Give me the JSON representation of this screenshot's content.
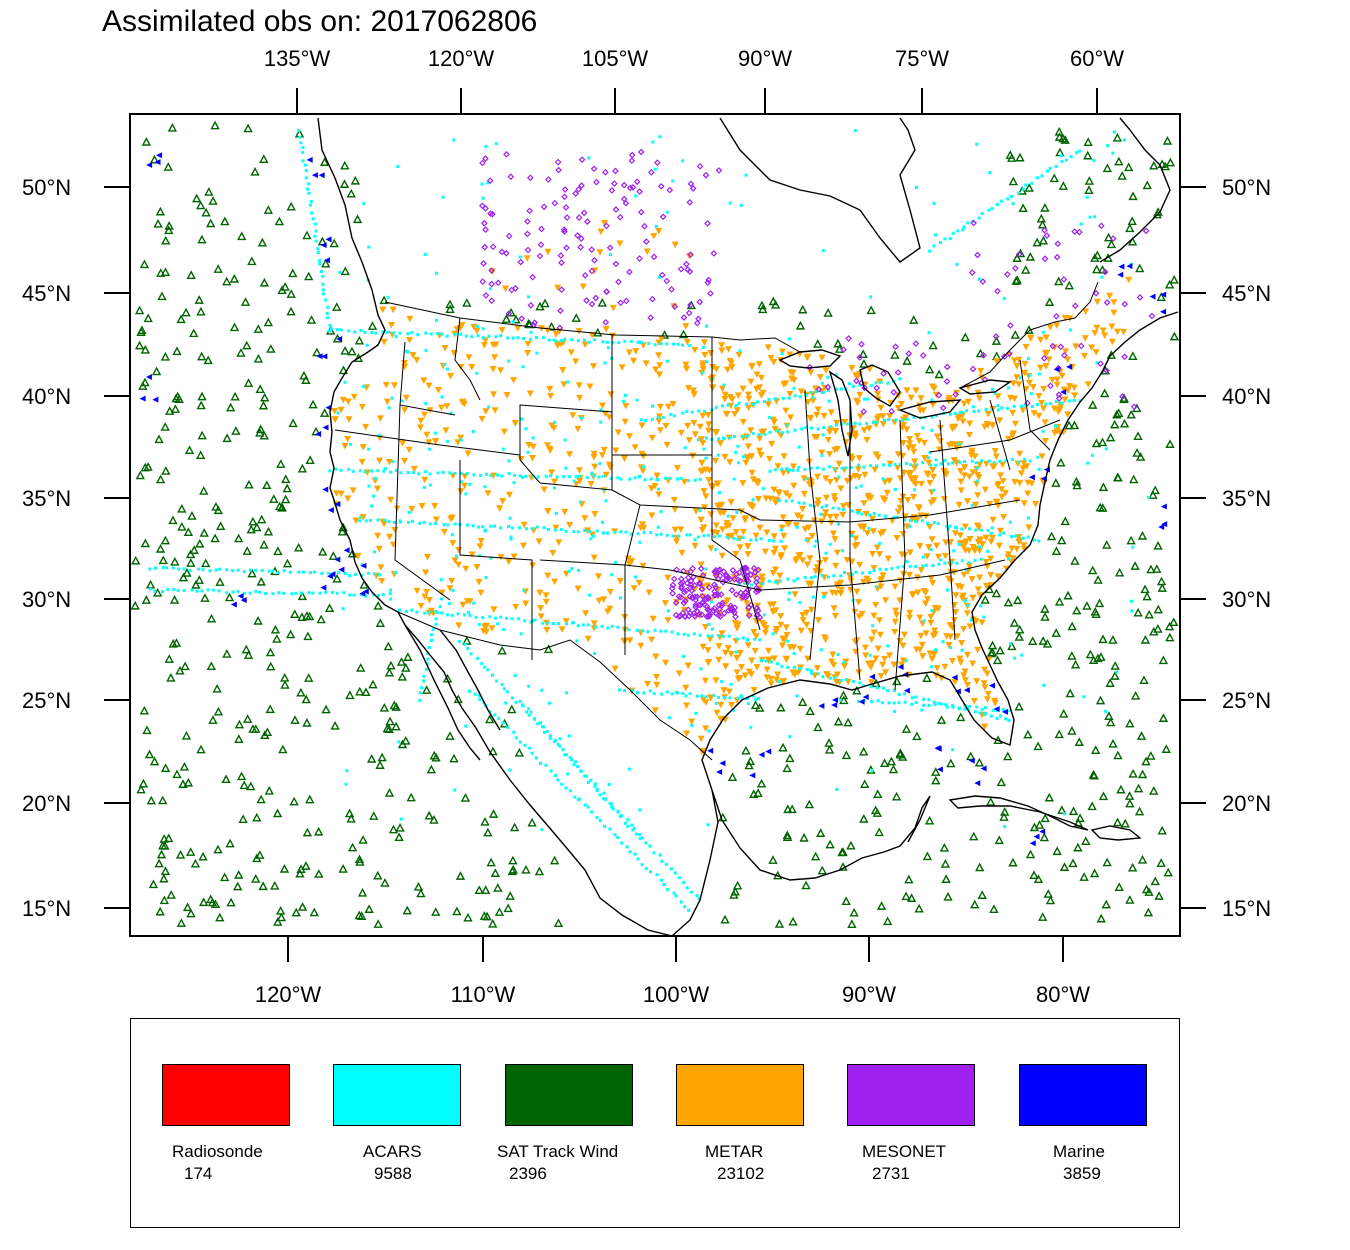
{
  "title": "Assimilated obs on: 2017062806",
  "axes": {
    "top_lon_labels": [
      "135°W",
      "120°W",
      "105°W",
      "90°W",
      "75°W",
      "60°W"
    ],
    "bottom_lon_labels": [
      "120°W",
      "110°W",
      "100°W",
      "90°W",
      "80°W"
    ],
    "lat_labels": [
      "50°N",
      "45°N",
      "40°N",
      "35°N",
      "30°N",
      "25°N",
      "20°N",
      "15°N"
    ]
  },
  "legend": [
    {
      "name": "Radiosonde",
      "count": "174",
      "color": "#ff0000"
    },
    {
      "name": "ACARS",
      "count": "9588",
      "color": "#00ffff"
    },
    {
      "name": "SAT Track Wind",
      "count": "2396",
      "color": "#006400"
    },
    {
      "name": "METAR",
      "count": "23102",
      "color": "#ffa500"
    },
    {
      "name": "MESONET",
      "count": "2731",
      "color": "#a020f0"
    },
    {
      "name": "Marine",
      "count": "3859",
      "color": "#0000ff"
    }
  ]
}
